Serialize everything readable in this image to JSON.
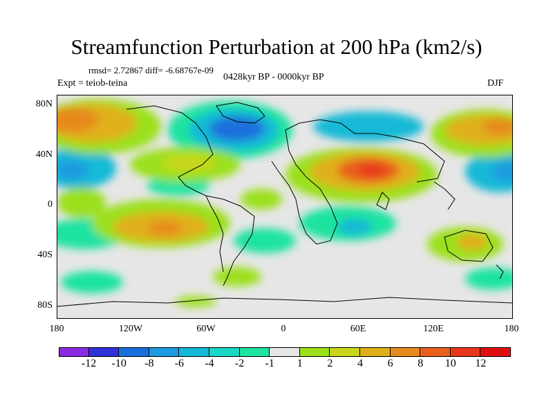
{
  "title": "Streamfunction Perturbation at 200 hPa (km2/s)",
  "stats": "rmsd= 2.72867 diff= -6.68767e-09",
  "period": "0428kyr BP - 0000kyr BP",
  "experiment": "Expt = teiob-teina",
  "season": "DJF",
  "axes": {
    "y_ticks": [
      "80N",
      "40N",
      "0",
      "40S",
      "80S"
    ],
    "x_ticks": [
      "180",
      "120W",
      "60W",
      "0",
      "60E",
      "120E",
      "180"
    ]
  },
  "colorbar": {
    "levels": [
      "-12",
      "-10",
      "-8",
      "-6",
      "-4",
      "-2",
      "-1",
      "1",
      "2",
      "4",
      "6",
      "8",
      "10",
      "12"
    ],
    "colors": [
      "#8a2be2",
      "#2f33d8",
      "#1a6fdc",
      "#1c9be0",
      "#13b9d6",
      "#1ad6c4",
      "#1fe3a0",
      "#e6e6e6",
      "#9be01a",
      "#c9d61a",
      "#e0b01c",
      "#e68a1c",
      "#e8601c",
      "#e8361c",
      "#e00f0f"
    ]
  }
}
